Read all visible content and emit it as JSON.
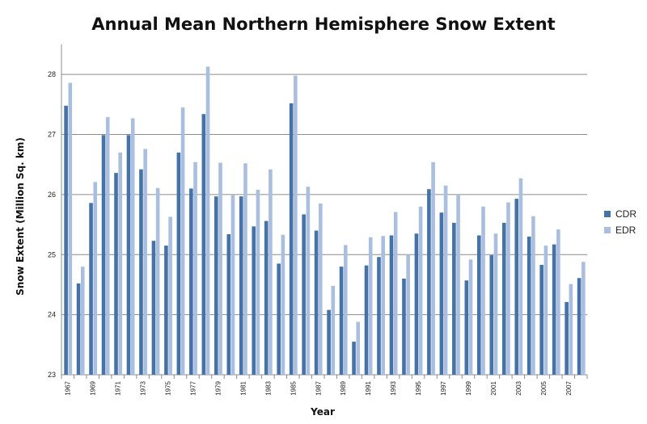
{
  "chart_data": {
    "type": "bar",
    "title": "Annual Mean Northern Hemisphere Snow Extent",
    "xlabel": "Year",
    "ylabel": "Snow Extent (Million Sq. km)",
    "ylim": [
      23,
      28.5
    ],
    "yticks": [
      23,
      24,
      25,
      26,
      27,
      28
    ],
    "grid": true,
    "legend_position": "right",
    "categories": [
      "1967",
      "1968",
      "1969",
      "1970",
      "1971",
      "1972",
      "1973",
      "1974",
      "1975",
      "1976",
      "1977",
      "1978",
      "1979",
      "1980",
      "1981",
      "1982",
      "1983",
      "1984",
      "1985",
      "1986",
      "1987",
      "1988",
      "1989",
      "1990",
      "1991",
      "1992",
      "1993",
      "1994",
      "1995",
      "1996",
      "1997",
      "1998",
      "1999",
      "2000",
      "2001",
      "2002",
      "2003",
      "2004",
      "2005",
      "2006",
      "2007",
      "2008"
    ],
    "x_tick_labels": [
      "1967",
      "",
      "1969",
      "",
      "1971",
      "",
      "1973",
      "",
      "1975",
      "",
      "1977",
      "",
      "1979",
      "",
      "1981",
      "",
      "1983",
      "",
      "1985",
      "",
      "1987",
      "",
      "1989",
      "",
      "1991",
      "",
      "1993",
      "",
      "1995",
      "",
      "1997",
      "",
      "1999",
      "",
      "2001",
      "",
      "2003",
      "",
      "2005",
      "",
      "2007",
      ""
    ],
    "series": [
      {
        "name": "CDR",
        "color": "#4572a7",
        "values": [
          27.48,
          24.52,
          25.86,
          26.99,
          26.36,
          26.99,
          26.42,
          25.23,
          25.15,
          26.7,
          26.1,
          27.34,
          25.97,
          25.34,
          25.97,
          25.47,
          25.56,
          24.85,
          27.52,
          25.67,
          25.4,
          24.08,
          24.8,
          23.55,
          24.82,
          24.96,
          25.32,
          24.6,
          25.35,
          26.09,
          25.7,
          25.53,
          24.57,
          25.32,
          24.99,
          25.53,
          25.93,
          25.3,
          24.83,
          25.17,
          24.21,
          24.61
        ]
      },
      {
        "name": "EDR",
        "color": "#aabfe0",
        "values": [
          27.86,
          24.8,
          26.21,
          27.29,
          26.7,
          27.27,
          26.76,
          26.11,
          25.63,
          27.45,
          26.54,
          28.13,
          26.53,
          25.99,
          26.52,
          26.08,
          26.42,
          25.33,
          27.98,
          26.13,
          25.85,
          24.48,
          25.16,
          23.88,
          25.29,
          25.31,
          25.71,
          25.0,
          25.8,
          26.54,
          26.15,
          26.0,
          24.92,
          25.8,
          25.35,
          25.87,
          26.27,
          25.64,
          25.15,
          25.42,
          24.51,
          24.88
        ]
      }
    ]
  }
}
